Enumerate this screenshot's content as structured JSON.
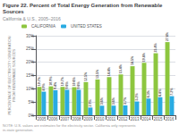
{
  "chart_data": {
    "type": "bar",
    "title": "Figure 22. Percent of Total Energy Generation from Renewable Sources",
    "subtitle": "California & U.S., 2005–2016",
    "ylabel": "PERCENTAGE OF ELECTRICITY GENERATION\nFROM RENEWABLE SOURCES",
    "footnote": "NOTE: U.S. values are estimates for the electricity sector. California only represents in-state generation.",
    "categories": [
      "2005",
      "2006",
      "2007",
      "2008",
      "2009",
      "2010",
      "2011",
      "2012",
      "2013",
      "2014",
      "2015",
      "2016"
    ],
    "series": [
      {
        "name": "CALIFORNIA",
        "color": "#8dc63f",
        "values": [
          10.7,
          10.9,
          10.7,
          10.6,
          12.5,
          13.5,
          14.4,
          15.4,
          18.5,
          19.8,
          23.4,
          27.6
        ],
        "value_labels": [
          "10.7%",
          "10.9%",
          "10.7%",
          "10.6%",
          "12.5%",
          "13.5%",
          "14.4%",
          "15.4%",
          "18.5%",
          "19.8%",
          "23.4%",
          "27.6%"
        ]
      },
      {
        "name": "UNITED STATES",
        "color": "#29abe2",
        "values": [
          8.9,
          9.4,
          9.6,
          9.6,
          2.9,
          3.6,
          3.6,
          3.7,
          5.2,
          6.3,
          6.8,
          7.2
        ],
        "value_labels": [
          "8.9%",
          "9.4%",
          "9.6%",
          "9.6%",
          "2.9%",
          "3.6%",
          "3.6%",
          "3.7%",
          "5.2%",
          "6.3%",
          "6.8%",
          "7.2%"
        ]
      }
    ],
    "ylim": [
      0,
      30
    ],
    "yticks": [
      {
        "value": 0,
        "label": "0%"
      },
      {
        "value": 5,
        "label": "5%"
      },
      {
        "value": 10,
        "label": "10%"
      },
      {
        "value": 15,
        "label": "15%"
      },
      {
        "value": 20,
        "label": "20%"
      },
      {
        "value": 25,
        "label": "25%"
      },
      {
        "value": 30,
        "label": "30%"
      }
    ],
    "grid": true,
    "legend": "upper left",
    "data_labels": true
  }
}
